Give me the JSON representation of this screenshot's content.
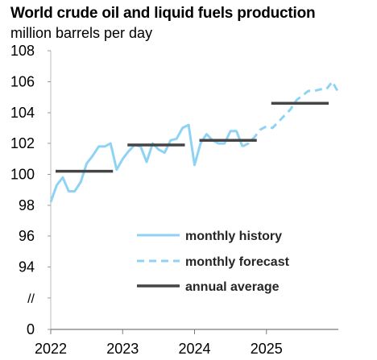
{
  "chart_data": {
    "type": "line",
    "title": "World crude oil and liquid fuels production",
    "subtitle": "million barrels per day",
    "ylim": [
      92,
      108
    ],
    "y_ticks": [
      "108",
      "106",
      "104",
      "102",
      "100",
      "98",
      "96",
      "94",
      "//",
      "0"
    ],
    "y_tick_values": [
      108,
      106,
      104,
      102,
      100,
      98,
      96,
      94,
      92.8,
      91.6
    ],
    "x_ticks": [
      "2022",
      "2023",
      "2024",
      "2025"
    ],
    "x_tick_values": [
      2022,
      2023,
      2024,
      2025
    ],
    "xlim": [
      2022,
      2026
    ],
    "axis_break": true,
    "grid": false,
    "legend_position": "lower-right",
    "series": [
      {
        "name": "monthly history",
        "style": "solid",
        "color": "#8fd3f4",
        "x": [
          2022.0,
          2022.083,
          2022.167,
          2022.25,
          2022.333,
          2022.417,
          2022.5,
          2022.583,
          2022.667,
          2022.75,
          2022.833,
          2022.917,
          2023.0,
          2023.083,
          2023.167,
          2023.25,
          2023.333,
          2023.417,
          2023.5,
          2023.583,
          2023.667,
          2023.75,
          2023.833,
          2023.917,
          2024.0,
          2024.083,
          2024.167,
          2024.25,
          2024.333,
          2024.417,
          2024.5,
          2024.583,
          2024.667
        ],
        "y": [
          98.2,
          99.3,
          99.8,
          98.9,
          98.9,
          99.5,
          100.7,
          101.2,
          101.8,
          101.8,
          102.0,
          100.3,
          101.0,
          101.5,
          101.9,
          101.8,
          100.8,
          102.0,
          101.6,
          101.4,
          102.2,
          102.3,
          103.0,
          103.2,
          100.6,
          102.0,
          102.6,
          102.2,
          102.0,
          102.0,
          102.8,
          102.8,
          101.8
        ]
      },
      {
        "name": "monthly forecast",
        "style": "dashed",
        "color": "#8fd3f4",
        "x": [
          2024.667,
          2024.75,
          2024.833,
          2024.917,
          2025.0,
          2025.083,
          2025.167,
          2025.25,
          2025.333,
          2025.417,
          2025.5,
          2025.583,
          2025.667,
          2025.75,
          2025.833,
          2025.917,
          2026.0
        ],
        "y": [
          101.8,
          102.0,
          102.4,
          102.9,
          103.1,
          103.0,
          103.4,
          103.8,
          104.2,
          104.8,
          105.1,
          105.4,
          105.4,
          105.5,
          105.5,
          106.0,
          105.3
        ]
      },
      {
        "name": "annual average",
        "style": "segments",
        "color": "#454545",
        "segments": [
          {
            "year": 2022,
            "value": 100.2
          },
          {
            "year": 2023,
            "value": 101.9
          },
          {
            "year": 2024,
            "value": 102.2
          },
          {
            "year": 2025,
            "value": 104.6
          }
        ]
      }
    ]
  }
}
